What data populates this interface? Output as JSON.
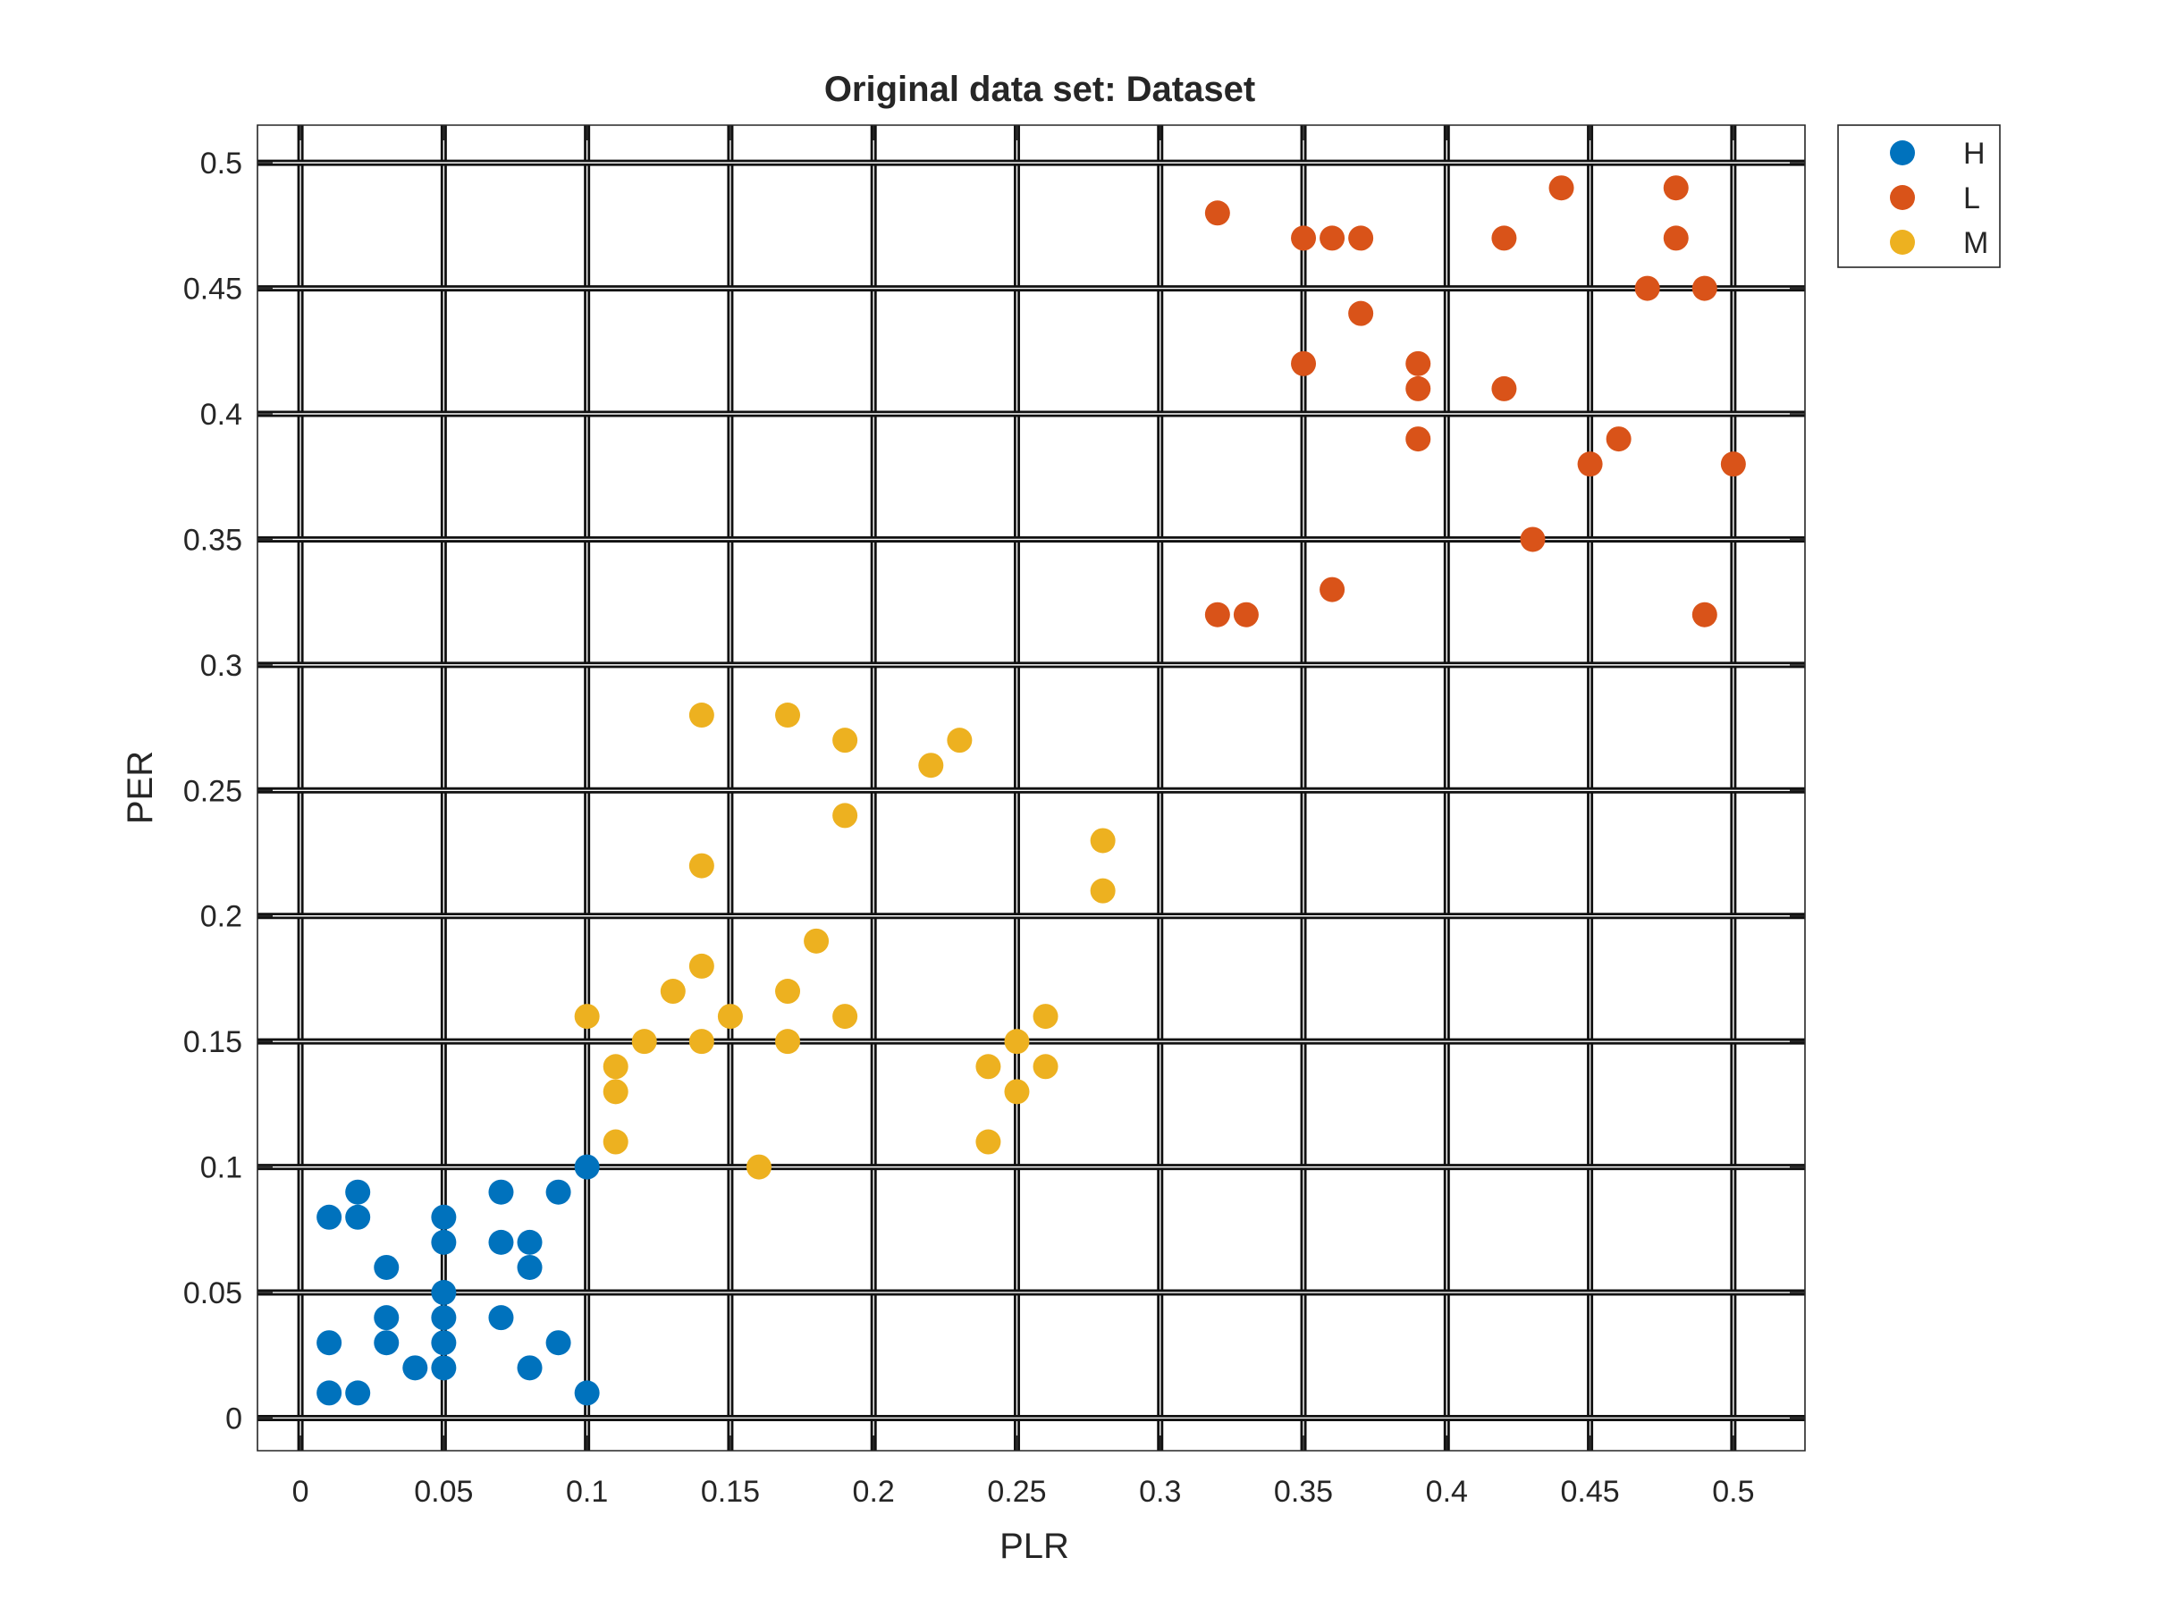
{
  "chart_data": {
    "type": "scatter",
    "title": "Original data set: Dataset",
    "xlabel": "PLR",
    "ylabel": "PER",
    "xlim": [
      -0.015,
      0.525
    ],
    "ylim": [
      -0.013,
      0.515
    ],
    "xticks": [
      0,
      0.05,
      0.1,
      0.15,
      0.2,
      0.25,
      0.3,
      0.35,
      0.4,
      0.45,
      0.5
    ],
    "yticks": [
      0,
      0.05,
      0.1,
      0.15,
      0.2,
      0.25,
      0.3,
      0.35,
      0.4,
      0.45,
      0.5
    ],
    "xtick_labels": [
      "0",
      "0.05",
      "0.1",
      "0.15",
      "0.2",
      "0.25",
      "0.3",
      "0.35",
      "0.4",
      "0.45",
      "0.5"
    ],
    "ytick_labels": [
      "0",
      "0.05",
      "0.1",
      "0.15",
      "0.2",
      "0.25",
      "0.3",
      "0.35",
      "0.4",
      "0.45",
      "0.5"
    ],
    "grid": true,
    "legend_position": "outside-top-right",
    "series": [
      {
        "name": "H",
        "color": "#0072BD",
        "points": [
          [
            0.01,
            0.08
          ],
          [
            0.02,
            0.09
          ],
          [
            0.02,
            0.08
          ],
          [
            0.03,
            0.06
          ],
          [
            0.05,
            0.08
          ],
          [
            0.05,
            0.07
          ],
          [
            0.07,
            0.09
          ],
          [
            0.07,
            0.07
          ],
          [
            0.08,
            0.07
          ],
          [
            0.08,
            0.06
          ],
          [
            0.09,
            0.09
          ],
          [
            0.1,
            0.1
          ],
          [
            0.03,
            0.04
          ],
          [
            0.05,
            0.05
          ],
          [
            0.05,
            0.04
          ],
          [
            0.07,
            0.04
          ],
          [
            0.01,
            0.03
          ],
          [
            0.03,
            0.03
          ],
          [
            0.05,
            0.03
          ],
          [
            0.09,
            0.03
          ],
          [
            0.04,
            0.02
          ],
          [
            0.05,
            0.02
          ],
          [
            0.08,
            0.02
          ],
          [
            0.01,
            0.01
          ],
          [
            0.02,
            0.01
          ],
          [
            0.1,
            0.01
          ]
        ]
      },
      {
        "name": "L",
        "color": "#D95319",
        "points": [
          [
            0.32,
            0.48
          ],
          [
            0.35,
            0.47
          ],
          [
            0.36,
            0.47
          ],
          [
            0.37,
            0.47
          ],
          [
            0.42,
            0.47
          ],
          [
            0.44,
            0.49
          ],
          [
            0.48,
            0.49
          ],
          [
            0.48,
            0.47
          ],
          [
            0.47,
            0.45
          ],
          [
            0.49,
            0.45
          ],
          [
            0.37,
            0.44
          ],
          [
            0.35,
            0.42
          ],
          [
            0.39,
            0.42
          ],
          [
            0.39,
            0.41
          ],
          [
            0.42,
            0.41
          ],
          [
            0.39,
            0.39
          ],
          [
            0.46,
            0.39
          ],
          [
            0.45,
            0.38
          ],
          [
            0.5,
            0.38
          ],
          [
            0.43,
            0.35
          ],
          [
            0.36,
            0.33
          ],
          [
            0.32,
            0.32
          ],
          [
            0.33,
            0.32
          ],
          [
            0.49,
            0.32
          ]
        ]
      },
      {
        "name": "M",
        "color": "#EDB120",
        "points": [
          [
            0.14,
            0.28
          ],
          [
            0.17,
            0.28
          ],
          [
            0.19,
            0.27
          ],
          [
            0.23,
            0.27
          ],
          [
            0.22,
            0.26
          ],
          [
            0.19,
            0.24
          ],
          [
            0.28,
            0.23
          ],
          [
            0.14,
            0.22
          ],
          [
            0.28,
            0.21
          ],
          [
            0.18,
            0.19
          ],
          [
            0.14,
            0.18
          ],
          [
            0.13,
            0.17
          ],
          [
            0.17,
            0.17
          ],
          [
            0.1,
            0.16
          ],
          [
            0.15,
            0.16
          ],
          [
            0.19,
            0.16
          ],
          [
            0.26,
            0.16
          ],
          [
            0.12,
            0.15
          ],
          [
            0.14,
            0.15
          ],
          [
            0.17,
            0.15
          ],
          [
            0.25,
            0.15
          ],
          [
            0.11,
            0.14
          ],
          [
            0.24,
            0.14
          ],
          [
            0.26,
            0.14
          ],
          [
            0.11,
            0.13
          ],
          [
            0.25,
            0.13
          ],
          [
            0.11,
            0.11
          ],
          [
            0.24,
            0.11
          ],
          [
            0.16,
            0.1
          ]
        ]
      }
    ]
  }
}
